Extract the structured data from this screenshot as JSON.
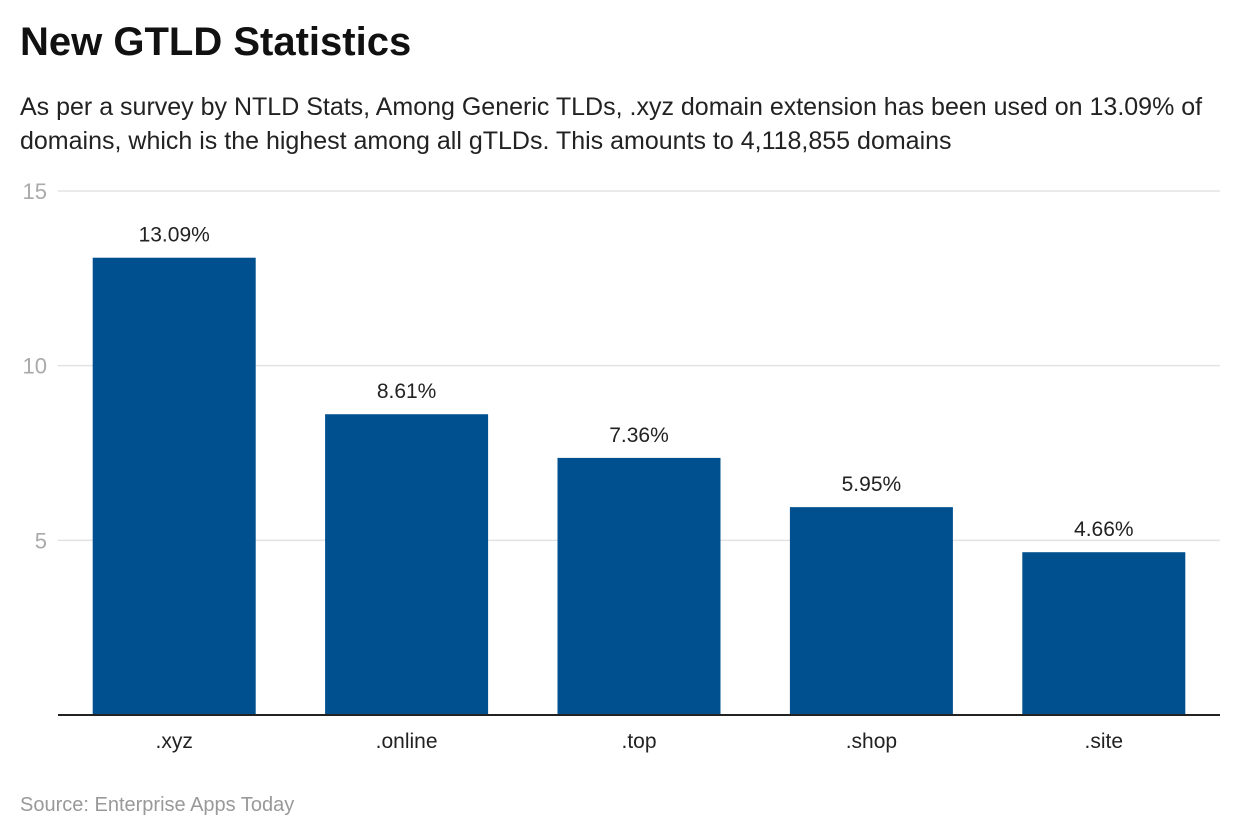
{
  "chart_data": {
    "type": "bar",
    "title": "New GTLD Statistics",
    "subtitle": "As per a survey by NTLD Stats, Among Generic TLDs, .xyz domain extension has been used on 13.09% of domains, which is the highest among all gTLDs. This amounts to 4,118,855 domains",
    "categories": [
      ".xyz",
      ".online",
      ".top",
      ".shop",
      ".site"
    ],
    "values": [
      13.09,
      8.61,
      7.36,
      5.95,
      4.66
    ],
    "data_labels": [
      "13.09%",
      "8.61%",
      "7.36%",
      "5.95%",
      "4.66%"
    ],
    "xlabel": "",
    "ylabel": "",
    "ylim": [
      0,
      15
    ],
    "yticks": [
      5,
      10,
      15
    ],
    "grid": true,
    "bar_color": "#00508f",
    "source": "Source: Enterprise Apps Today"
  }
}
